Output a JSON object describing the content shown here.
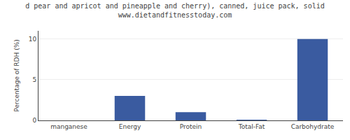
{
  "chart_data": {
    "type": "bar",
    "title": "d pear and apricot and pineapple and cherry), canned, juice pack, solid",
    "subtitle": "www.dietandfitnesstoday.com",
    "categories": [
      "manganese",
      "Energy",
      "Protein",
      "Total-Fat",
      "Carbohydrate"
    ],
    "values": [
      0.0,
      3.0,
      1.0,
      0.05,
      10.0
    ],
    "color": "#3a5ba0",
    "ylabel": "Percentage of RDH (%)",
    "ylim": [
      0,
      11
    ],
    "yticks": [
      0,
      5,
      10
    ],
    "grid": true
  }
}
